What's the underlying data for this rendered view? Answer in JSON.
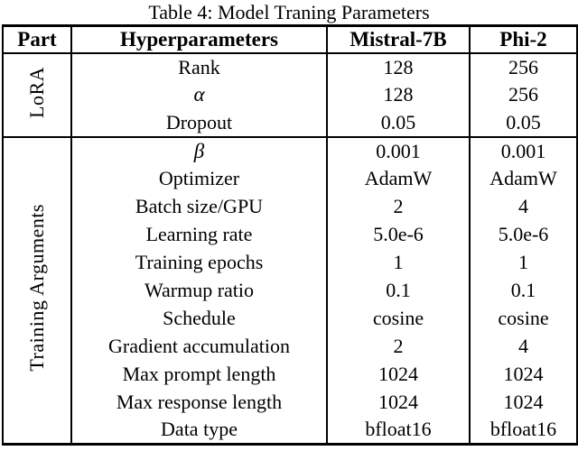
{
  "caption": "Table 4: Model Traning Parameters",
  "table": {
    "headers": {
      "part": "Part",
      "hyperparameters": "Hyperparameters",
      "model1": "Mistral-7B",
      "model2": "Phi-2"
    },
    "sections": [
      {
        "label": "LoRA",
        "rows": [
          {
            "param": "Rank",
            "mistral": "128",
            "phi": "256"
          },
          {
            "param": "α",
            "mistral": "128",
            "phi": "256"
          },
          {
            "param": "Dropout",
            "mistral": "0.05",
            "phi": "0.05"
          }
        ]
      },
      {
        "label": "Training Arguments",
        "rows": [
          {
            "param": "β",
            "mistral": "0.001",
            "phi": "0.001"
          },
          {
            "param": "Optimizer",
            "mistral": "AdamW",
            "phi": "AdamW"
          },
          {
            "param": "Batch size/GPU",
            "mistral": "2",
            "phi": "4"
          },
          {
            "param": "Learning rate",
            "mistral": "5.0e-6",
            "phi": "5.0e-6"
          },
          {
            "param": "Training epochs",
            "mistral": "1",
            "phi": "1"
          },
          {
            "param": "Warmup ratio",
            "mistral": "0.1",
            "phi": "0.1"
          },
          {
            "param": "Schedule",
            "mistral": "cosine",
            "phi": "cosine"
          },
          {
            "param": "Gradient accumulation",
            "mistral": "2",
            "phi": "4"
          },
          {
            "param": "Max prompt length",
            "mistral": "1024",
            "phi": "1024"
          },
          {
            "param": "Max response length",
            "mistral": "1024",
            "phi": "1024"
          },
          {
            "param": "Data type",
            "mistral": "bfloat16",
            "phi": "bfloat16"
          }
        ]
      }
    ]
  },
  "colors": {
    "text": "#000000",
    "background": "#ffffff",
    "border": "#000000"
  }
}
